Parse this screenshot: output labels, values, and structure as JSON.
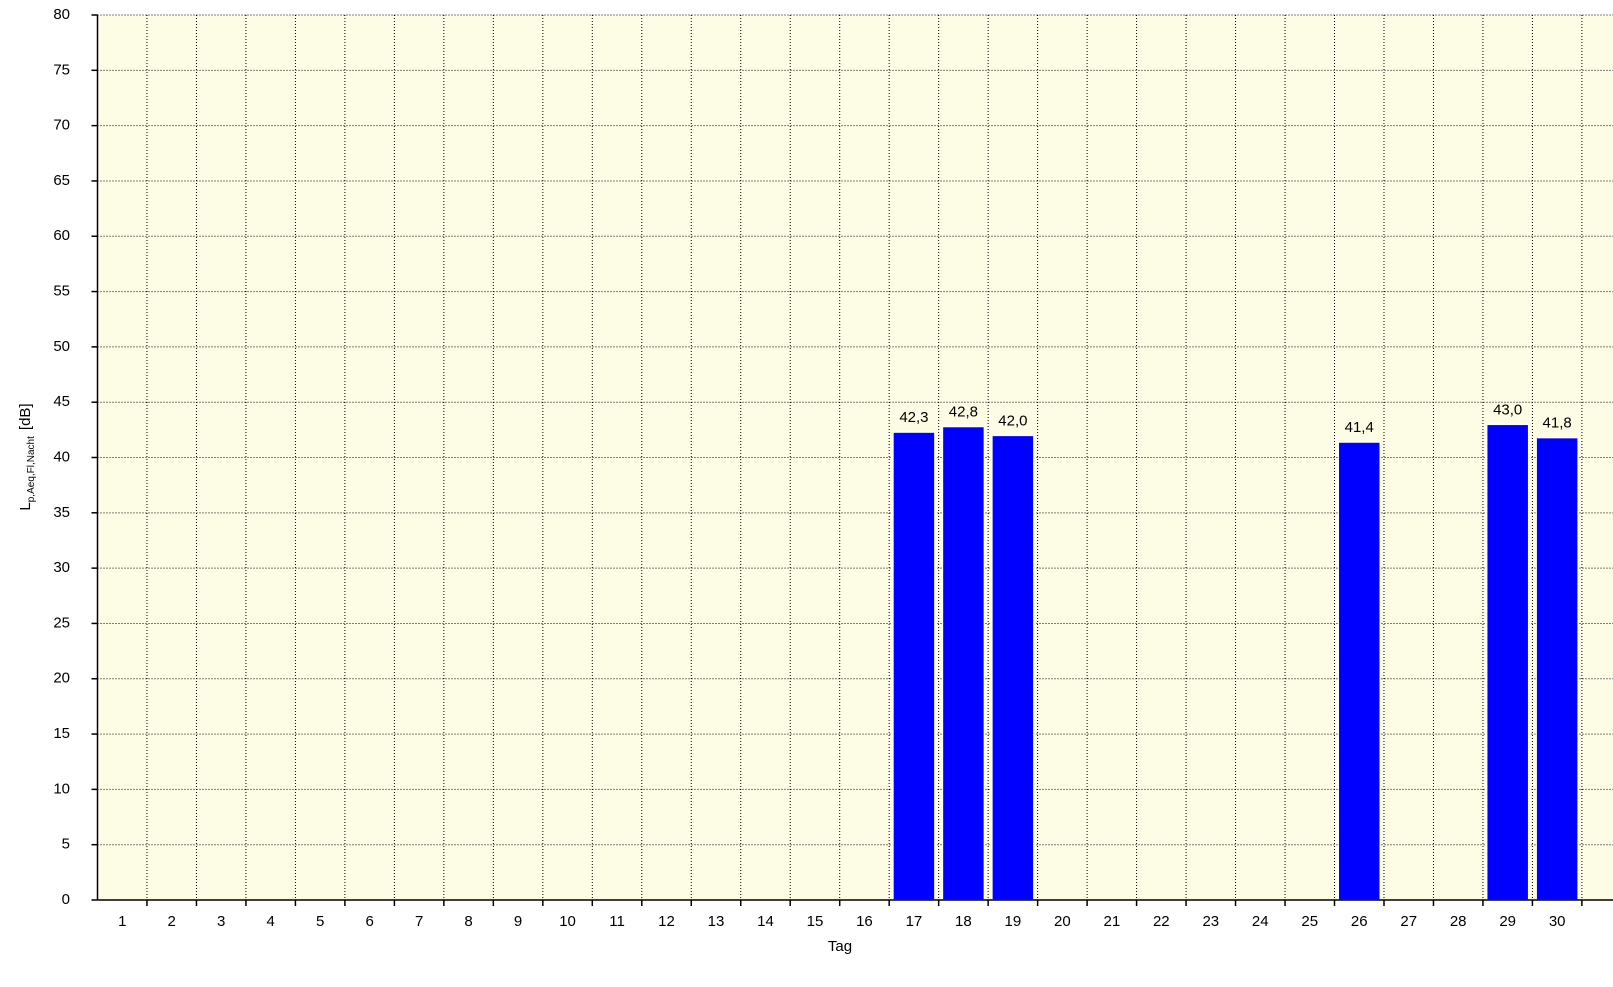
{
  "chart_data": {
    "type": "bar",
    "x_label": "Tag",
    "y_label": {
      "main": "L",
      "subscript": "p,Aeq,Fl,Nacht",
      "unit": "[dB]"
    },
    "categories": [
      "1",
      "2",
      "3",
      "4",
      "5",
      "6",
      "7",
      "8",
      "9",
      "10",
      "11",
      "12",
      "13",
      "14",
      "15",
      "16",
      "17",
      "18",
      "19",
      "20",
      "21",
      "22",
      "23",
      "24",
      "25",
      "26",
      "27",
      "28",
      "29",
      "30"
    ],
    "values": [
      null,
      null,
      null,
      null,
      null,
      null,
      null,
      null,
      null,
      null,
      null,
      null,
      null,
      null,
      null,
      null,
      42.3,
      42.8,
      42.0,
      null,
      null,
      null,
      null,
      null,
      null,
      41.4,
      null,
      null,
      43.0,
      41.8
    ],
    "value_labels": [
      null,
      null,
      null,
      null,
      null,
      null,
      null,
      null,
      null,
      null,
      null,
      null,
      null,
      null,
      null,
      null,
      "42,3",
      "42,8",
      "42,0",
      null,
      null,
      null,
      null,
      null,
      null,
      "41,4",
      null,
      null,
      "43,0",
      "41,8"
    ],
    "color": "#0000ff",
    "ylim": [
      0,
      80
    ],
    "yticks": [
      0,
      5,
      10,
      15,
      20,
      25,
      30,
      35,
      40,
      45,
      50,
      55,
      60,
      65,
      70,
      75,
      80
    ],
    "grid": true
  }
}
